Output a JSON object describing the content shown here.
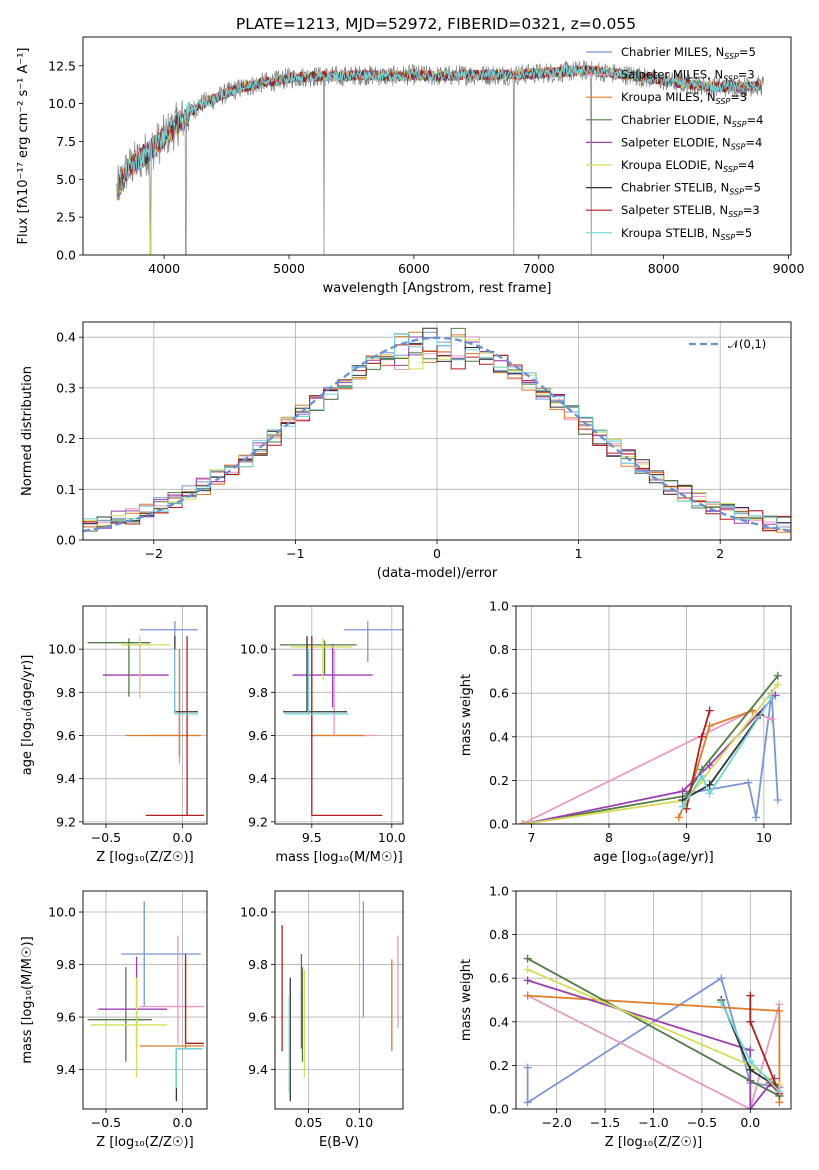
{
  "figure": {
    "title": "PLATE=1213, MJD=52972, FIBERID=0321, z=0.055"
  },
  "models": [
    {
      "name": "Chabrier MILES",
      "nssp": "5",
      "color": "#7b96d6"
    },
    {
      "name": "Salpeter MILES",
      "nssp": "3",
      "color": "#e899c4"
    },
    {
      "name": "Kroupa MILES",
      "nssp": "3",
      "color": "#e07b28"
    },
    {
      "name": "Chabrier ELODIE",
      "nssp": "4",
      "color": "#4f7d45"
    },
    {
      "name": "Salpeter ELODIE",
      "nssp": "4",
      "color": "#9b3fb3"
    },
    {
      "name": "Kroupa ELODIE",
      "nssp": "4",
      "color": "#d6dd55"
    },
    {
      "name": "Chabrier STELIB",
      "nssp": "5",
      "color": "#333333"
    },
    {
      "name": "Salpeter STELIB",
      "nssp": "3",
      "color": "#b41d1d"
    },
    {
      "name": "Kroupa STELIB",
      "nssp": "5",
      "color": "#6fd6dc"
    }
  ],
  "chart_data": [
    {
      "id": "spectrum",
      "type": "line",
      "xlabel": "wavelength [Angstrom, rest frame]",
      "ylabel": "Flux [fλ10⁻¹⁷ erg cm⁻² s⁻¹ A⁻¹]",
      "xlim": [
        3350,
        9020
      ],
      "ylim": [
        0,
        14.4
      ],
      "xticks": [
        "4000",
        "5000",
        "6000",
        "7000",
        "8000",
        "9000"
      ],
      "yticks": [
        "0.0",
        "2.5",
        "5.0",
        "7.5",
        "10.0",
        "12.5"
      ],
      "legend_position": "right",
      "data_color": "#808080",
      "continuum_x": [
        3620,
        3700,
        3800,
        3900,
        3980,
        4100,
        4200,
        4300,
        4400,
        4500,
        4600,
        4700,
        4800,
        4900,
        5000,
        5200,
        5400,
        5600,
        5800,
        6000,
        6200,
        6400,
        6600,
        6800,
        7000,
        7200,
        7400,
        7600,
        7800,
        8000,
        8200,
        8400,
        8600,
        8800
      ],
      "continuum_y": [
        4.2,
        5.6,
        6.3,
        7.0,
        7.6,
        8.6,
        9.4,
        10.0,
        10.3,
        10.7,
        11.0,
        11.2,
        11.4,
        11.5,
        11.7,
        11.8,
        11.8,
        11.9,
        11.8,
        11.9,
        11.8,
        11.9,
        11.9,
        11.9,
        12.0,
        12.1,
        12.2,
        12.0,
        11.8,
        11.5,
        11.3,
        11.1,
        11.1,
        11.2
      ],
      "dips": [
        {
          "x": 3890,
          "y": 0
        },
        {
          "x": 4175,
          "y": 0
        },
        {
          "x": 5280,
          "y": 0
        },
        {
          "x": 6800,
          "y": 0
        },
        {
          "x": 7420,
          "y": 0
        }
      ]
    },
    {
      "id": "residuals",
      "type": "bar",
      "xlabel": "(data-model)/error",
      "ylabel": "Normed distribution",
      "xlim": [
        -2.5,
        2.5
      ],
      "ylim": [
        0,
        0.43
      ],
      "xticks": [
        "−2",
        "−1",
        "0",
        "1",
        "2"
      ],
      "yticks": [
        "0.0",
        "0.1",
        "0.2",
        "0.3",
        "0.4"
      ],
      "grid": true,
      "bin_width": 0.1,
      "reference_curve": {
        "label": "𝒩(0,1)",
        "mean": 0,
        "sigma": 1,
        "color": "#6a8fd4"
      },
      "legend_position": "top-right"
    },
    {
      "id": "age-vs-Z",
      "type": "scatter",
      "xlabel": "Z [log₁₀(Z/Z☉)]",
      "ylabel": "age  [log₁₀(age/yr)]",
      "xlim": [
        -0.65,
        0.16
      ],
      "ylim": [
        9.19,
        10.2
      ],
      "xticks": [
        "−0.5",
        "0.0"
      ],
      "yticks": [
        "9.2",
        "9.4",
        "9.6",
        "9.8",
        "10.0"
      ],
      "grid": true,
      "points": [
        {
          "model": 0,
          "x": -0.05,
          "y": 10.09,
          "xerr": [
            0.23,
            0.15
          ],
          "yerr": [
            0.04,
            0.04
          ]
        },
        {
          "model": 1,
          "x": -0.02,
          "y": 9.6,
          "xerr": [
            0.17,
            0.14
          ],
          "yerr": [
            0.13,
            0.4
          ]
        },
        {
          "model": 2,
          "x": -0.02,
          "y": 9.6,
          "xerr": [
            0.35,
            0.14
          ],
          "yerr": [
            0.1,
            0.4
          ]
        },
        {
          "model": 3,
          "x": -0.35,
          "y": 10.03,
          "xerr": [
            0.27,
            0.14
          ],
          "yerr": [
            0.25,
            0.02
          ]
        },
        {
          "model": 4,
          "x": -0.28,
          "y": 9.88,
          "xerr": [
            0.24,
            0.19
          ],
          "yerr": [
            0.1,
            0.14
          ]
        },
        {
          "model": 5,
          "x": -0.28,
          "y": 10.02,
          "xerr": [
            0.12,
            0.2
          ],
          "yerr": [
            0.25,
            0.04
          ]
        },
        {
          "model": 6,
          "x": -0.05,
          "y": 9.71,
          "xerr": [
            0.0,
            0.15
          ],
          "yerr": [
            0.0,
            0.35
          ]
        },
        {
          "model": 7,
          "x": 0.03,
          "y": 9.23,
          "xerr": [
            0.27,
            0.11
          ],
          "yerr": [
            0.0,
            0.83
          ]
        },
        {
          "model": 8,
          "x": -0.05,
          "y": 9.7,
          "xerr": [
            0.0,
            0.15
          ],
          "yerr": [
            0.0,
            0.3
          ]
        }
      ]
    },
    {
      "id": "age-vs-mass",
      "type": "scatter",
      "xlabel": "mass [log₁₀(M/M☉)]",
      "ylabel": "",
      "xlim": [
        9.27,
        10.07
      ],
      "ylim": [
        9.19,
        10.2
      ],
      "xticks": [
        "9.5",
        "10.0"
      ],
      "yticks": [
        "9.2",
        "9.4",
        "9.6",
        "9.8",
        "10.0"
      ],
      "grid": true,
      "points": [
        {
          "model": 0,
          "x": 9.85,
          "y": 10.09,
          "xerr": [
            0.15,
            0.24
          ],
          "yerr": [
            0.15,
            0.04
          ]
        },
        {
          "model": 1,
          "x": 9.64,
          "y": 9.6,
          "xerr": [
            0.14,
            0.27
          ],
          "yerr": [
            0.0,
            0.4
          ]
        },
        {
          "model": 2,
          "x": 9.5,
          "y": 9.6,
          "xerr": [
            0.0,
            0.33
          ],
          "yerr": [
            0.0,
            0.4
          ]
        },
        {
          "model": 3,
          "x": 9.58,
          "y": 10.02,
          "xerr": [
            0.28,
            0.2
          ],
          "yerr": [
            0.14,
            0.02
          ]
        },
        {
          "model": 4,
          "x": 9.63,
          "y": 9.88,
          "xerr": [
            0.25,
            0.25
          ],
          "yerr": [
            0.15,
            0.14
          ]
        },
        {
          "model": 5,
          "x": 9.57,
          "y": 10.01,
          "xerr": [
            0.2,
            0.18
          ],
          "yerr": [
            0.15,
            0.04
          ]
        },
        {
          "model": 6,
          "x": 9.47,
          "y": 9.71,
          "xerr": [
            0.15,
            0.25
          ],
          "yerr": [
            0.0,
            0.35
          ]
        },
        {
          "model": 7,
          "x": 9.5,
          "y": 9.23,
          "xerr": [
            0.0,
            0.44
          ],
          "yerr": [
            0.0,
            0.83
          ]
        },
        {
          "model": 8,
          "x": 9.48,
          "y": 9.7,
          "xerr": [
            0.15,
            0.25
          ],
          "yerr": [
            0.0,
            0.3
          ]
        }
      ]
    },
    {
      "id": "massweight-vs-age",
      "type": "line",
      "xlabel": "age  [log₁₀(age/yr)]",
      "ylabel": "mass weight",
      "xlim": [
        6.8,
        10.35
      ],
      "ylim": [
        0,
        1.0
      ],
      "xticks": [
        "7",
        "8",
        "9",
        "10"
      ],
      "yticks": [
        "0.0",
        "0.2",
        "0.4",
        "0.6",
        "0.8",
        "1.0"
      ],
      "grid": true,
      "series": [
        {
          "model": 0,
          "x": [
            9.0,
            9.8,
            9.9,
            10.1,
            10.18
          ],
          "y": [
            0.14,
            0.19,
            0.03,
            0.6,
            0.11
          ]
        },
        {
          "model": 1,
          "x": [
            6.88,
            9.85,
            10.1
          ],
          "y": [
            0.0,
            0.52,
            0.48
          ]
        },
        {
          "model": 2,
          "x": [
            8.9,
            9.05,
            9.3,
            9.85
          ],
          "y": [
            0.03,
            0.15,
            0.45,
            0.52
          ]
        },
        {
          "model": 3,
          "x": [
            6.9,
            9.0,
            9.2,
            10.18
          ],
          "y": [
            0.0,
            0.13,
            0.25,
            0.68
          ]
        },
        {
          "model": 4,
          "x": [
            6.9,
            8.95,
            9.3,
            10.15
          ],
          "y": [
            0.0,
            0.15,
            0.27,
            0.59
          ]
        },
        {
          "model": 5,
          "x": [
            6.9,
            9.0,
            9.2,
            10.18
          ],
          "y": [
            0.0,
            0.11,
            0.2,
            0.64
          ]
        },
        {
          "model": 6,
          "x": [
            8.95,
            9.3,
            9.95
          ],
          "y": [
            0.11,
            0.18,
            0.5
          ]
        },
        {
          "model": 7,
          "x": [
            9.0,
            9.2,
            9.3
          ],
          "y": [
            0.07,
            0.4,
            0.52
          ]
        },
        {
          "model": 8,
          "x": [
            8.95,
            9.2,
            9.3,
            10.1
          ],
          "y": [
            0.08,
            0.22,
            0.14,
            0.58
          ]
        }
      ]
    },
    {
      "id": "mass-vs-Z",
      "type": "scatter",
      "xlabel": "Z [log₁₀(Z/Z☉)]",
      "ylabel": "mass [log₁₀(M/M☉)]",
      "xlim": [
        -0.65,
        0.16
      ],
      "ylim": [
        9.25,
        10.08
      ],
      "xticks": [
        "−0.5",
        "0.0"
      ],
      "yticks": [
        "9.4",
        "9.6",
        "9.8",
        "10.0"
      ],
      "grid": true,
      "points": [
        {
          "model": 0,
          "x": -0.25,
          "y": 9.84,
          "xerr": [
            0.15,
            0.37
          ],
          "yerr": [
            0.2,
            0.2
          ]
        },
        {
          "model": 1,
          "x": -0.03,
          "y": 9.64,
          "xerr": [
            0.25,
            0.17
          ],
          "yerr": [
            0.14,
            0.27
          ]
        },
        {
          "model": 2,
          "x": 0.02,
          "y": 9.49,
          "xerr": [
            0.3,
            0.12
          ],
          "yerr": [
            0.01,
            0.33
          ]
        },
        {
          "model": 3,
          "x": -0.37,
          "y": 9.59,
          "xerr": [
            0.25,
            0.17
          ],
          "yerr": [
            0.16,
            0.2
          ]
        },
        {
          "model": 4,
          "x": -0.3,
          "y": 9.63,
          "xerr": [
            0.25,
            0.2
          ],
          "yerr": [
            0.15,
            0.2
          ]
        },
        {
          "model": 5,
          "x": -0.3,
          "y": 9.57,
          "xerr": [
            0.3,
            0.2
          ],
          "yerr": [
            0.2,
            0.18
          ]
        },
        {
          "model": 6,
          "x": -0.04,
          "y": 9.48,
          "xerr": [
            0.0,
            0.17
          ],
          "yerr": [
            0.2,
            0.0
          ]
        },
        {
          "model": 7,
          "x": 0.02,
          "y": 9.5,
          "xerr": [
            0.0,
            0.12
          ],
          "yerr": [
            0.0,
            0.34
          ]
        },
        {
          "model": 8,
          "x": -0.04,
          "y": 9.48,
          "xerr": [
            0.0,
            0.17
          ],
          "yerr": [
            0.15,
            0.0
          ]
        }
      ]
    },
    {
      "id": "mass-vs-EBV",
      "type": "scatter",
      "xlabel": "E(B-V)",
      "ylabel": "",
      "xlim": [
        0.017,
        0.143
      ],
      "ylim": [
        9.25,
        10.08
      ],
      "xticks": [
        "0.05",
        "0.10"
      ],
      "yticks": [
        "9.4",
        "9.6",
        "9.8",
        "10.0"
      ],
      "grid": true,
      "points": [
        {
          "model": 0,
          "x": 0.104,
          "y": 9.84,
          "xerr": [
            0,
            0
          ],
          "yerr": [
            0.24,
            0.2
          ]
        },
        {
          "model": 1,
          "x": 0.138,
          "y": 9.64,
          "xerr": [
            0,
            0
          ],
          "yerr": [
            0.08,
            0.27
          ]
        },
        {
          "model": 2,
          "x": 0.132,
          "y": 9.49,
          "xerr": [
            0,
            0
          ],
          "yerr": [
            0.02,
            0.33
          ]
        },
        {
          "model": 3,
          "x": 0.044,
          "y": 9.59,
          "xerr": [
            0,
            0
          ],
          "yerr": [
            0.16,
            0.2
          ]
        },
        {
          "model": 4,
          "x": 0.043,
          "y": 9.63,
          "xerr": [
            0,
            0
          ],
          "yerr": [
            0.15,
            0.21
          ]
        },
        {
          "model": 5,
          "x": 0.046,
          "y": 9.57,
          "xerr": [
            0,
            0
          ],
          "yerr": [
            0.2,
            0.21
          ]
        },
        {
          "model": 6,
          "x": 0.032,
          "y": 9.48,
          "xerr": [
            0,
            0
          ],
          "yerr": [
            0.2,
            0.27
          ]
        },
        {
          "model": 7,
          "x": 0.024,
          "y": 9.7,
          "xerr": [
            0,
            0
          ],
          "yerr": [
            0.23,
            0.25
          ]
        },
        {
          "model": 8,
          "x": 0.031,
          "y": 9.48,
          "xerr": [
            0,
            0
          ],
          "yerr": [
            0.17,
            0.2
          ]
        }
      ]
    },
    {
      "id": "massweight-vs-Z",
      "type": "line",
      "xlabel": "Z [log₁₀(Z/Z☉)]",
      "ylabel": "mass weight",
      "xlim": [
        -2.42,
        0.42
      ],
      "ylim": [
        0,
        1.0
      ],
      "xticks": [
        "−2.0",
        "−1.5",
        "−1.0",
        "−0.5",
        "0.0"
      ],
      "yticks": [
        "0.0",
        "0.2",
        "0.4",
        "0.6",
        "0.8",
        "1.0"
      ],
      "grid": true,
      "series": [
        {
          "model": 0,
          "x": [
            -2.3,
            -2.3,
            -0.3,
            0.0,
            0.3,
            0.3
          ],
          "y": [
            0.19,
            0.03,
            0.6,
            0.12,
            0.1,
            0.06
          ]
        },
        {
          "model": 1,
          "x": [
            -2.3,
            0.0,
            0.3
          ],
          "y": [
            0.52,
            0.0,
            0.48
          ]
        },
        {
          "model": 2,
          "x": [
            -2.3,
            0.3,
            0.3
          ],
          "y": [
            0.52,
            0.45,
            0.03
          ]
        },
        {
          "model": 3,
          "x": [
            -2.3,
            0.0,
            0.3
          ],
          "y": [
            0.69,
            0.13,
            0.06
          ]
        },
        {
          "model": 4,
          "x": [
            -2.3,
            0.0,
            0.0,
            0.25
          ],
          "y": [
            0.59,
            0.27,
            0.0,
            0.14
          ]
        },
        {
          "model": 5,
          "x": [
            -2.3,
            0.0,
            0.3
          ],
          "y": [
            0.64,
            0.2,
            0.11
          ]
        },
        {
          "model": 6,
          "x": [
            -0.3,
            0.0,
            0.25
          ],
          "y": [
            0.5,
            0.18,
            0.11
          ]
        },
        {
          "model": 7,
          "x": [
            0.0,
            0.0,
            0.3,
            0.2
          ],
          "y": [
            0.52,
            0.4,
            0.07,
            0.12
          ]
        },
        {
          "model": 8,
          "x": [
            -0.3,
            0.0,
            0.3
          ],
          "y": [
            0.49,
            0.22,
            0.08
          ]
        }
      ]
    }
  ]
}
